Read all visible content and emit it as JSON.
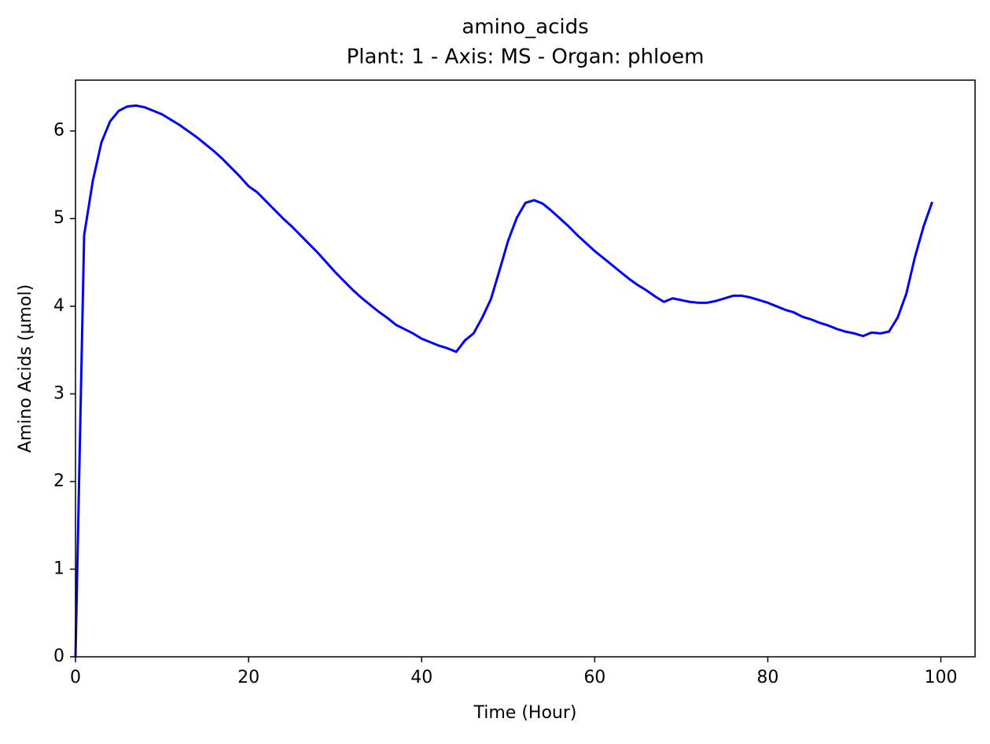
{
  "chart_data": {
    "type": "line",
    "title": "amino_acids",
    "subtitle": "Plant: 1 - Axis: MS - Organ: phloem",
    "x_label": "Time (Hour)",
    "y_label": "Amino Acids (µmol)",
    "x": [
      0,
      1,
      2,
      3,
      4,
      5,
      6,
      7,
      8,
      9,
      10,
      11,
      12,
      13,
      14,
      15,
      16,
      17,
      18,
      19,
      20,
      21,
      22,
      23,
      24,
      25,
      26,
      27,
      28,
      29,
      30,
      31,
      32,
      33,
      34,
      35,
      36,
      37,
      38,
      39,
      40,
      41,
      42,
      43,
      44,
      45,
      46,
      47,
      48,
      49,
      50,
      51,
      52,
      53,
      54,
      55,
      56,
      57,
      58,
      59,
      60,
      61,
      62,
      63,
      64,
      65,
      66,
      67,
      68,
      69,
      70,
      71,
      72,
      73,
      74,
      75,
      76,
      77,
      78,
      79,
      80,
      81,
      82,
      83,
      84,
      85,
      86,
      87,
      88,
      89,
      90,
      91,
      92,
      93,
      94,
      95,
      96,
      97,
      98,
      99
    ],
    "series": [
      {
        "color": "#0000ff",
        "values": [
          0,
          4.81,
          5.43,
          5.87,
          6.11,
          6.23,
          6.28,
          6.29,
          6.27,
          6.23,
          6.19,
          6.13,
          6.07,
          6.0,
          5.93,
          5.85,
          5.77,
          5.68,
          5.58,
          5.48,
          5.37,
          5.3,
          5.2,
          5.1,
          5.0,
          4.91,
          4.81,
          4.71,
          4.61,
          4.5,
          4.39,
          4.29,
          4.19,
          4.1,
          4.02,
          3.94,
          3.87,
          3.79,
          3.74,
          3.69,
          3.63,
          3.59,
          3.55,
          3.52,
          3.48,
          3.61,
          3.69,
          3.87,
          4.08,
          4.41,
          4.75,
          5.01,
          5.18,
          5.21,
          5.17,
          5.09,
          5.0,
          4.91,
          4.81,
          4.72,
          4.63,
          4.55,
          4.47,
          4.39,
          4.31,
          4.24,
          4.18,
          4.11,
          4.05,
          4.09,
          4.07,
          4.05,
          4.04,
          4.04,
          4.06,
          4.09,
          4.12,
          4.12,
          4.1,
          4.07,
          4.04,
          4.0,
          3.96,
          3.93,
          3.88,
          3.85,
          3.81,
          3.78,
          3.74,
          3.71,
          3.69,
          3.66,
          3.7,
          3.69,
          3.71,
          3.87,
          4.14,
          4.56,
          4.91,
          5.19
        ]
      }
    ],
    "xlim": [
      0,
      103.95
    ],
    "ylim": [
      0,
      6.58
    ],
    "xticks": [
      0,
      20,
      40,
      60,
      80,
      100
    ],
    "yticks": [
      0,
      1,
      2,
      3,
      4,
      5,
      6
    ]
  }
}
